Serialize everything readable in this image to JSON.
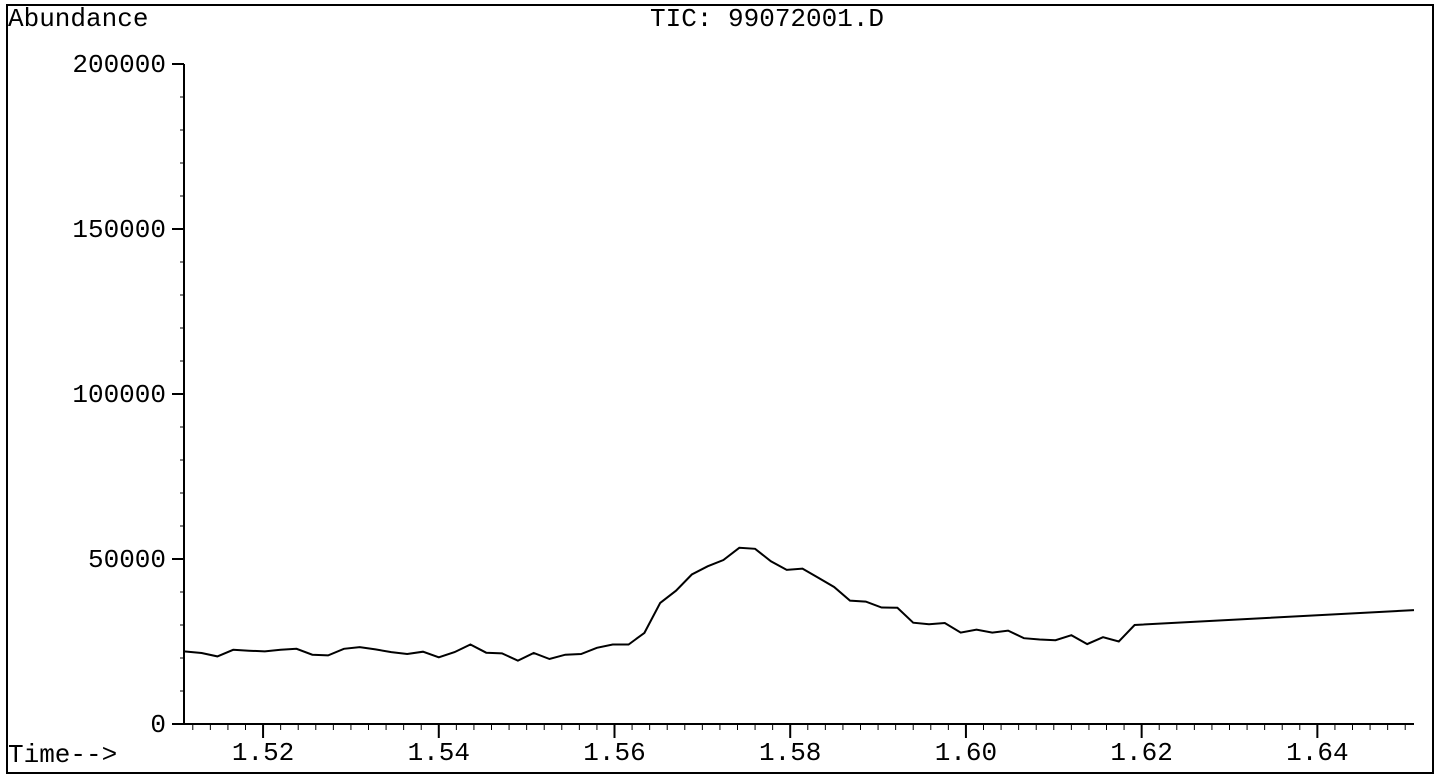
{
  "chart_data": {
    "type": "line",
    "title": "TIC: 99072001.D",
    "ylabel": "Abundance",
    "xlabel": "Time-->",
    "xlim": [
      1.511,
      1.651
    ],
    "ylim": [
      0,
      200000
    ],
    "xticks": [
      {
        "value": 1.52,
        "label": "1.52"
      },
      {
        "value": 1.54,
        "label": "1.54"
      },
      {
        "value": 1.56,
        "label": "1.56"
      },
      {
        "value": 1.58,
        "label": "1.58"
      },
      {
        "value": 1.6,
        "label": "1.60"
      },
      {
        "value": 1.62,
        "label": "1.62"
      },
      {
        "value": 1.64,
        "label": "1.64"
      }
    ],
    "yticks": [
      {
        "value": 0,
        "label": "0"
      },
      {
        "value": 50000,
        "label": "50000"
      },
      {
        "value": 100000,
        "label": "100000"
      },
      {
        "value": 150000,
        "label": "150000"
      },
      {
        "value": 200000,
        "label": "200000"
      }
    ],
    "grid": false,
    "series": [
      {
        "color": "#000000",
        "points": [
          [
            1.511,
            22000
          ],
          [
            1.513,
            21500
          ],
          [
            1.5148,
            20500
          ],
          [
            1.5166,
            22500
          ],
          [
            1.5184,
            22200
          ],
          [
            1.5202,
            22000
          ],
          [
            1.522,
            22500
          ],
          [
            1.5238,
            22800
          ],
          [
            1.5256,
            21000
          ],
          [
            1.5274,
            20800
          ],
          [
            1.5292,
            22800
          ],
          [
            1.531,
            23300
          ],
          [
            1.5328,
            22600
          ],
          [
            1.5346,
            21800
          ],
          [
            1.5364,
            21200
          ],
          [
            1.5382,
            21900
          ],
          [
            1.54,
            20200
          ],
          [
            1.5418,
            21800
          ],
          [
            1.5436,
            24100
          ],
          [
            1.5454,
            21600
          ],
          [
            1.5472,
            21400
          ],
          [
            1.549,
            19200
          ],
          [
            1.5508,
            21500
          ],
          [
            1.5526,
            19700
          ],
          [
            1.5544,
            21000
          ],
          [
            1.5562,
            21200
          ],
          [
            1.558,
            23100
          ],
          [
            1.5598,
            24100
          ],
          [
            1.5616,
            24100
          ],
          [
            1.5634,
            27600
          ],
          [
            1.5652,
            36700
          ],
          [
            1.567,
            40400
          ],
          [
            1.5688,
            45300
          ],
          [
            1.5706,
            47800
          ],
          [
            1.5724,
            49700
          ],
          [
            1.5742,
            53400
          ],
          [
            1.576,
            53100
          ],
          [
            1.5778,
            49300
          ],
          [
            1.5796,
            46700
          ],
          [
            1.5814,
            47100
          ],
          [
            1.5832,
            44300
          ],
          [
            1.585,
            41500
          ],
          [
            1.5868,
            37400
          ],
          [
            1.5886,
            37100
          ],
          [
            1.5904,
            35300
          ],
          [
            1.5922,
            35200
          ],
          [
            1.594,
            30700
          ],
          [
            1.5958,
            30200
          ],
          [
            1.5976,
            30600
          ],
          [
            1.5994,
            27700
          ],
          [
            1.6012,
            28600
          ],
          [
            1.603,
            27700
          ],
          [
            1.6048,
            28300
          ],
          [
            1.6066,
            26000
          ],
          [
            1.6084,
            25600
          ],
          [
            1.6102,
            25400
          ],
          [
            1.612,
            26900
          ],
          [
            1.6138,
            24200
          ],
          [
            1.6156,
            26300
          ],
          [
            1.6174,
            25000
          ],
          [
            1.6192,
            30000
          ],
          [
            1.651,
            34500
          ]
        ]
      }
    ]
  }
}
